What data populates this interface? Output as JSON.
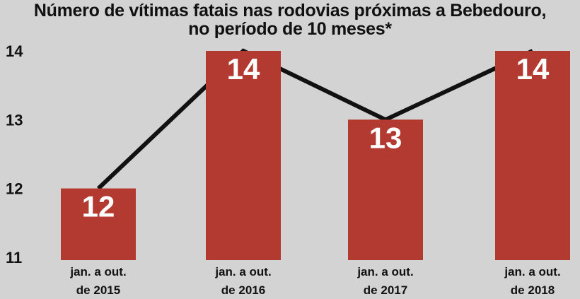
{
  "colors": {
    "background": "#d3d3d3",
    "bar": "#b33a30",
    "line": "#111111",
    "text": "#111111",
    "bar_label": "#ffffff"
  },
  "chart_data": {
    "type": "bar",
    "title": "Número de vítimas fatais nas rodovias próximas a Bebedouro,",
    "subtitle": "no período de 10 meses*",
    "categories": [
      [
        "jan. a out.",
        "de 2015"
      ],
      [
        "jan. a out.",
        "de 2016"
      ],
      [
        "jan. a out.",
        "de 2017"
      ],
      [
        "jan. a out.",
        "de 2018"
      ]
    ],
    "values": [
      12,
      14,
      13,
      14
    ],
    "data_labels": [
      "12",
      "14",
      "13",
      "14"
    ],
    "overlay_line": {
      "type": "line",
      "values": [
        12,
        14,
        13,
        14
      ]
    },
    "yticks": [
      "14",
      "13",
      "12",
      "11"
    ],
    "ylim": [
      11,
      14
    ],
    "xlabel": "",
    "ylabel": "",
    "grid": false,
    "legend": "none"
  }
}
